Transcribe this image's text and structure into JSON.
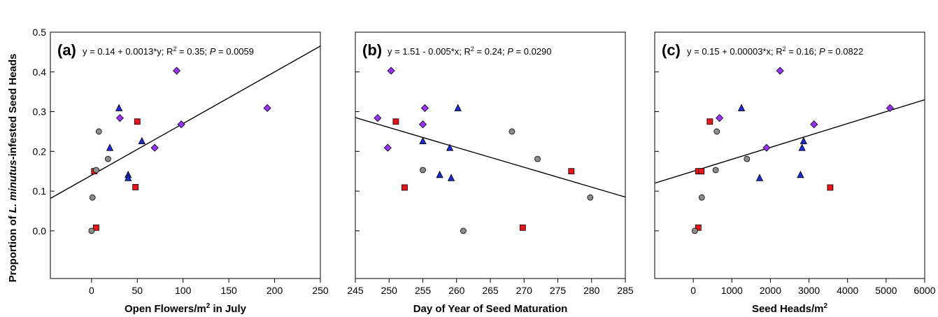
{
  "ylabel": {
    "prefix": "Proportion of ",
    "species": "L. minutus",
    "suffix": "-infested Seed Heads"
  },
  "colors": {
    "red": "#e8141b",
    "blue": "#1c2bd0",
    "purple": "#9b30ff",
    "gray": "#8c8c8c",
    "outline": "#000000"
  },
  "chart_data": [
    {
      "type": "scatter",
      "panel_label": "(a)",
      "equation": {
        "text": "y = 0.14 + 0.0013*y; R",
        "sup": "2",
        "mid": " = 0.35; ",
        "p_sym": "P",
        "tail": " = 0.0059"
      },
      "xlabel": {
        "text": "Open Flowers/m",
        "sup": "2",
        "tail": " in July"
      },
      "xlim": [
        -45,
        250
      ],
      "ylim": [
        -0.12,
        0.5
      ],
      "xticks": [
        0,
        50,
        100,
        150,
        200,
        250
      ],
      "yticks": [
        0.0,
        0.1,
        0.2,
        0.3,
        0.4,
        0.5
      ],
      "show_y_tick_labels": true,
      "line": {
        "intercept": 0.14,
        "slope": 0.0013
      },
      "series": [
        {
          "marker": "square",
          "color": "red",
          "points": [
            [
              3,
              0.15
            ],
            [
              5,
              0.008
            ],
            [
              48,
              0.11
            ],
            [
              50,
              0.275
            ]
          ]
        },
        {
          "marker": "triangle",
          "color": "blue",
          "points": [
            [
              20,
              0.209
            ],
            [
              30,
              0.309
            ],
            [
              40,
              0.141
            ],
            [
              40,
              0.133
            ],
            [
              55,
              0.226
            ]
          ]
        },
        {
          "marker": "diamond",
          "color": "purple",
          "points": [
            [
              31,
              0.284
            ],
            [
              69,
              0.209
            ],
            [
              93,
              0.403
            ],
            [
              98,
              0.268
            ],
            [
              192,
              0.309
            ]
          ]
        },
        {
          "marker": "circle",
          "color": "gray",
          "points": [
            [
              0,
              0.0
            ],
            [
              1,
              0.084
            ],
            [
              5,
              0.153
            ],
            [
              8,
              0.25
            ],
            [
              18,
              0.181
            ]
          ]
        }
      ]
    },
    {
      "type": "scatter",
      "panel_label": "(b)",
      "equation": {
        "text": "y = 1.51 - 0.005*x; R",
        "sup": "2",
        "mid": " = 0.24; ",
        "p_sym": "P",
        "tail": " = 0.0290"
      },
      "xlabel": {
        "text": "Day of Year of Seed Maturation",
        "sup": "",
        "tail": ""
      },
      "xlim": [
        245,
        285
      ],
      "ylim": [
        -0.12,
        0.5
      ],
      "xticks": [
        245,
        250,
        255,
        260,
        265,
        270,
        275,
        280,
        285
      ],
      "yticks": [
        0.0,
        0.1,
        0.2,
        0.3,
        0.4,
        0.5
      ],
      "show_y_tick_labels": false,
      "line": {
        "intercept": 1.51,
        "slope": -0.005
      },
      "series": [
        {
          "marker": "square",
          "color": "red",
          "points": [
            [
              251,
              0.275
            ],
            [
              252.3,
              0.109
            ],
            [
              269.8,
              0.008
            ],
            [
              277,
              0.15
            ]
          ]
        },
        {
          "marker": "triangle",
          "color": "blue",
          "points": [
            [
              255,
              0.226
            ],
            [
              257.5,
              0.141
            ],
            [
              259,
              0.209
            ],
            [
              259.2,
              0.133
            ],
            [
              260.2,
              0.309
            ]
          ]
        },
        {
          "marker": "diamond",
          "color": "purple",
          "points": [
            [
              248.3,
              0.284
            ],
            [
              249.8,
              0.209
            ],
            [
              250.3,
              0.403
            ],
            [
              255,
              0.268
            ],
            [
              255.3,
              0.309
            ]
          ]
        },
        {
          "marker": "circle",
          "color": "gray",
          "points": [
            [
              255,
              0.153
            ],
            [
              261,
              0.0
            ],
            [
              268.2,
              0.25
            ],
            [
              272,
              0.181
            ],
            [
              279.8,
              0.084
            ]
          ]
        }
      ]
    },
    {
      "type": "scatter",
      "panel_label": "(c)",
      "equation": {
        "text": "y = 0.15 + 0.00003*x; R",
        "sup": "2",
        "mid": " = 0.16; ",
        "p_sym": "P",
        "tail": " = 0.0822"
      },
      "xlabel": {
        "text": "Seed Heads/m",
        "sup": "2",
        "tail": ""
      },
      "xlim": [
        -1000,
        6000
      ],
      "ylim": [
        -0.12,
        0.5
      ],
      "xticks": [
        0,
        1000,
        2000,
        3000,
        4000,
        5000,
        6000
      ],
      "yticks": [
        0.0,
        0.1,
        0.2,
        0.3,
        0.4,
        0.5
      ],
      "show_y_tick_labels": false,
      "line": {
        "intercept": 0.15,
        "slope": 3e-05
      },
      "series": [
        {
          "marker": "square",
          "color": "red",
          "points": [
            [
              130,
              0.15
            ],
            [
              130,
              0.008
            ],
            [
              210,
              0.15
            ],
            [
              430,
              0.275
            ],
            [
              3550,
              0.109
            ]
          ]
        },
        {
          "marker": "triangle",
          "color": "blue",
          "points": [
            [
              1250,
              0.309
            ],
            [
              1720,
              0.133
            ],
            [
              2780,
              0.141
            ],
            [
              2820,
              0.209
            ],
            [
              2860,
              0.226
            ]
          ]
        },
        {
          "marker": "diamond",
          "color": "purple",
          "points": [
            [
              680,
              0.284
            ],
            [
              1900,
              0.209
            ],
            [
              2250,
              0.403
            ],
            [
              3130,
              0.268
            ],
            [
              5100,
              0.309
            ]
          ]
        },
        {
          "marker": "circle",
          "color": "gray",
          "points": [
            [
              40,
              0.0
            ],
            [
              220,
              0.084
            ],
            [
              580,
              0.153
            ],
            [
              610,
              0.25
            ],
            [
              1390,
              0.181
            ]
          ]
        }
      ]
    }
  ]
}
